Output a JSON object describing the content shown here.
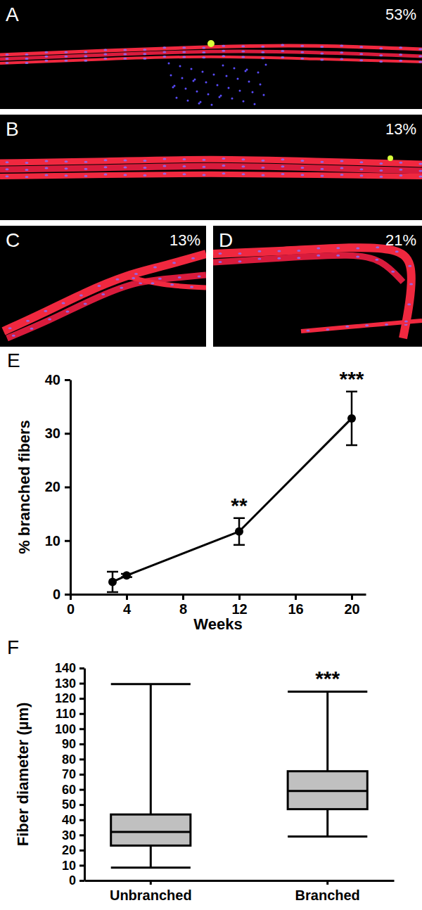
{
  "panels": [
    {
      "letter": "A",
      "label": "53%"
    },
    {
      "letter": "B",
      "label": "13%"
    },
    {
      "letter": "C",
      "label": "13%"
    },
    {
      "letter": "D",
      "label": "21%"
    }
  ],
  "chart_data": [
    {
      "type": "line",
      "panel_label": "E",
      "x": [
        3,
        4,
        12,
        20
      ],
      "values": [
        2.3,
        3.5,
        11.7,
        32.8
      ],
      "errors": [
        1.9,
        0.3,
        2.5,
        5.0
      ],
      "color": "#000000",
      "marker": "circle",
      "xlabel": "Weeks",
      "ylabel": "% branched fibers",
      "xlim": [
        0,
        21
      ],
      "xticks": [
        0,
        4,
        8,
        12,
        16,
        20
      ],
      "ylim": [
        0,
        40
      ],
      "yticks": [
        0,
        10,
        20,
        30,
        40
      ],
      "annotations": [
        {
          "text": "**",
          "x": 12
        },
        {
          "text": "***",
          "x": 20
        }
      ]
    },
    {
      "type": "box",
      "panel_label": "F",
      "categories": [
        "Unbranched",
        "Branched"
      ],
      "boxes": [
        {
          "min": 8.5,
          "q1": 23,
          "median": 32,
          "q3": 43.5,
          "max": 129.5
        },
        {
          "min": 29,
          "q1": 47,
          "median": 59,
          "q3": 72,
          "max": 124.5
        }
      ],
      "color": "#c0c0c0",
      "ylabel": "Fiber diameter (µm)",
      "ylim": [
        0,
        140
      ],
      "yticks": [
        0,
        10,
        20,
        30,
        40,
        50,
        60,
        70,
        80,
        90,
        100,
        110,
        120,
        130,
        140
      ],
      "annotations": [
        {
          "text": "***",
          "x": "Branched"
        }
      ]
    }
  ]
}
